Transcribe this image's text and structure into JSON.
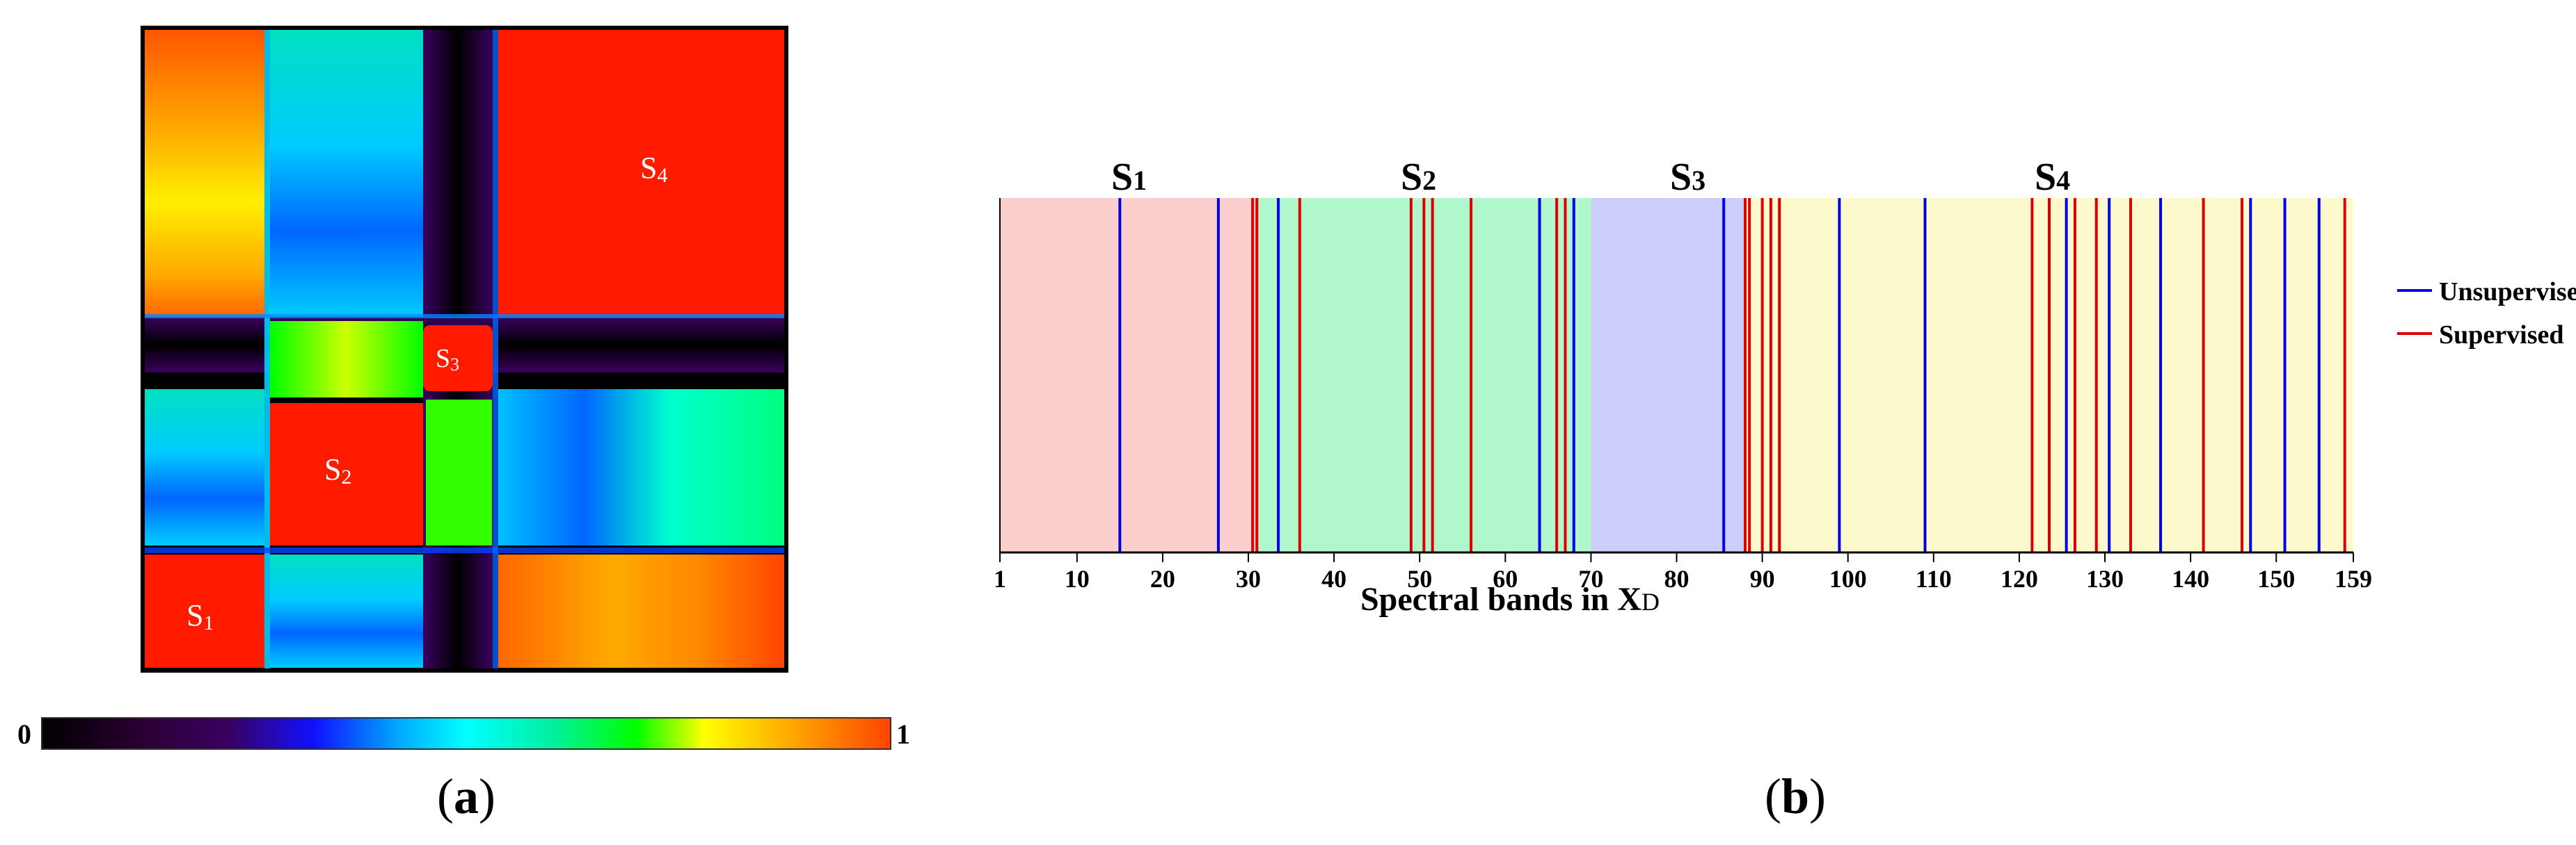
{
  "panel_a": {
    "caption": {
      "open": "(",
      "letter": "a",
      "close": ")"
    },
    "blocks": [
      {
        "name": "S",
        "sub": "1"
      },
      {
        "name": "S",
        "sub": "2"
      },
      {
        "name": "S",
        "sub": "3"
      },
      {
        "name": "S",
        "sub": "4"
      }
    ],
    "colorbar": {
      "min_label": "0",
      "max_label": "1",
      "stops": [
        "#000000",
        "#2b0033",
        "#3a0060",
        "#1010ff",
        "#00a8ff",
        "#00ffff",
        "#00f0a0",
        "#00ff00",
        "#ffff00",
        "#ffaa00",
        "#ff4400"
      ]
    }
  },
  "panel_b": {
    "caption": {
      "open": "(",
      "letter": "b",
      "close": ")"
    },
    "xlabel": {
      "text": "Spectral bands in X",
      "sub": "D"
    },
    "legend": [
      {
        "label": "Unsupervised",
        "color": "#0000ee"
      },
      {
        "label": "Supervised",
        "color": "#dd0000"
      }
    ]
  },
  "chart_data": {
    "type": "band-selection",
    "xlim": [
      1,
      159
    ],
    "xticks": [
      1,
      10,
      20,
      30,
      40,
      50,
      60,
      70,
      80,
      90,
      100,
      110,
      120,
      130,
      140,
      150,
      159
    ],
    "regions": [
      {
        "label": "S",
        "sub": "1",
        "start": 1,
        "end": 31,
        "color": "#fccfcf"
      },
      {
        "label": "S",
        "sub": "2",
        "start": 31,
        "end": 70,
        "color": "#b0f8cc"
      },
      {
        "label": "S",
        "sub": "3",
        "start": 70,
        "end": 88,
        "color": "#cccdfa"
      },
      {
        "label": "S",
        "sub": "4",
        "start": 88,
        "end": 159,
        "color": "#fcfacc"
      }
    ],
    "series": [
      {
        "name": "Unsupervised",
        "color": "#0000ee",
        "x": [
          15,
          26.5,
          33.5,
          64,
          68,
          85.5,
          99,
          109,
          125.5,
          130.5,
          136.5,
          147,
          151,
          155
        ]
      },
      {
        "name": "Supervised",
        "color": "#dd0000",
        "x": [
          30.5,
          31,
          36,
          49,
          50.5,
          51.5,
          56,
          66,
          67,
          88,
          88.5,
          90,
          91,
          92,
          121.5,
          123.5,
          126.5,
          129,
          133,
          141.5,
          146,
          158
        ]
      }
    ]
  }
}
